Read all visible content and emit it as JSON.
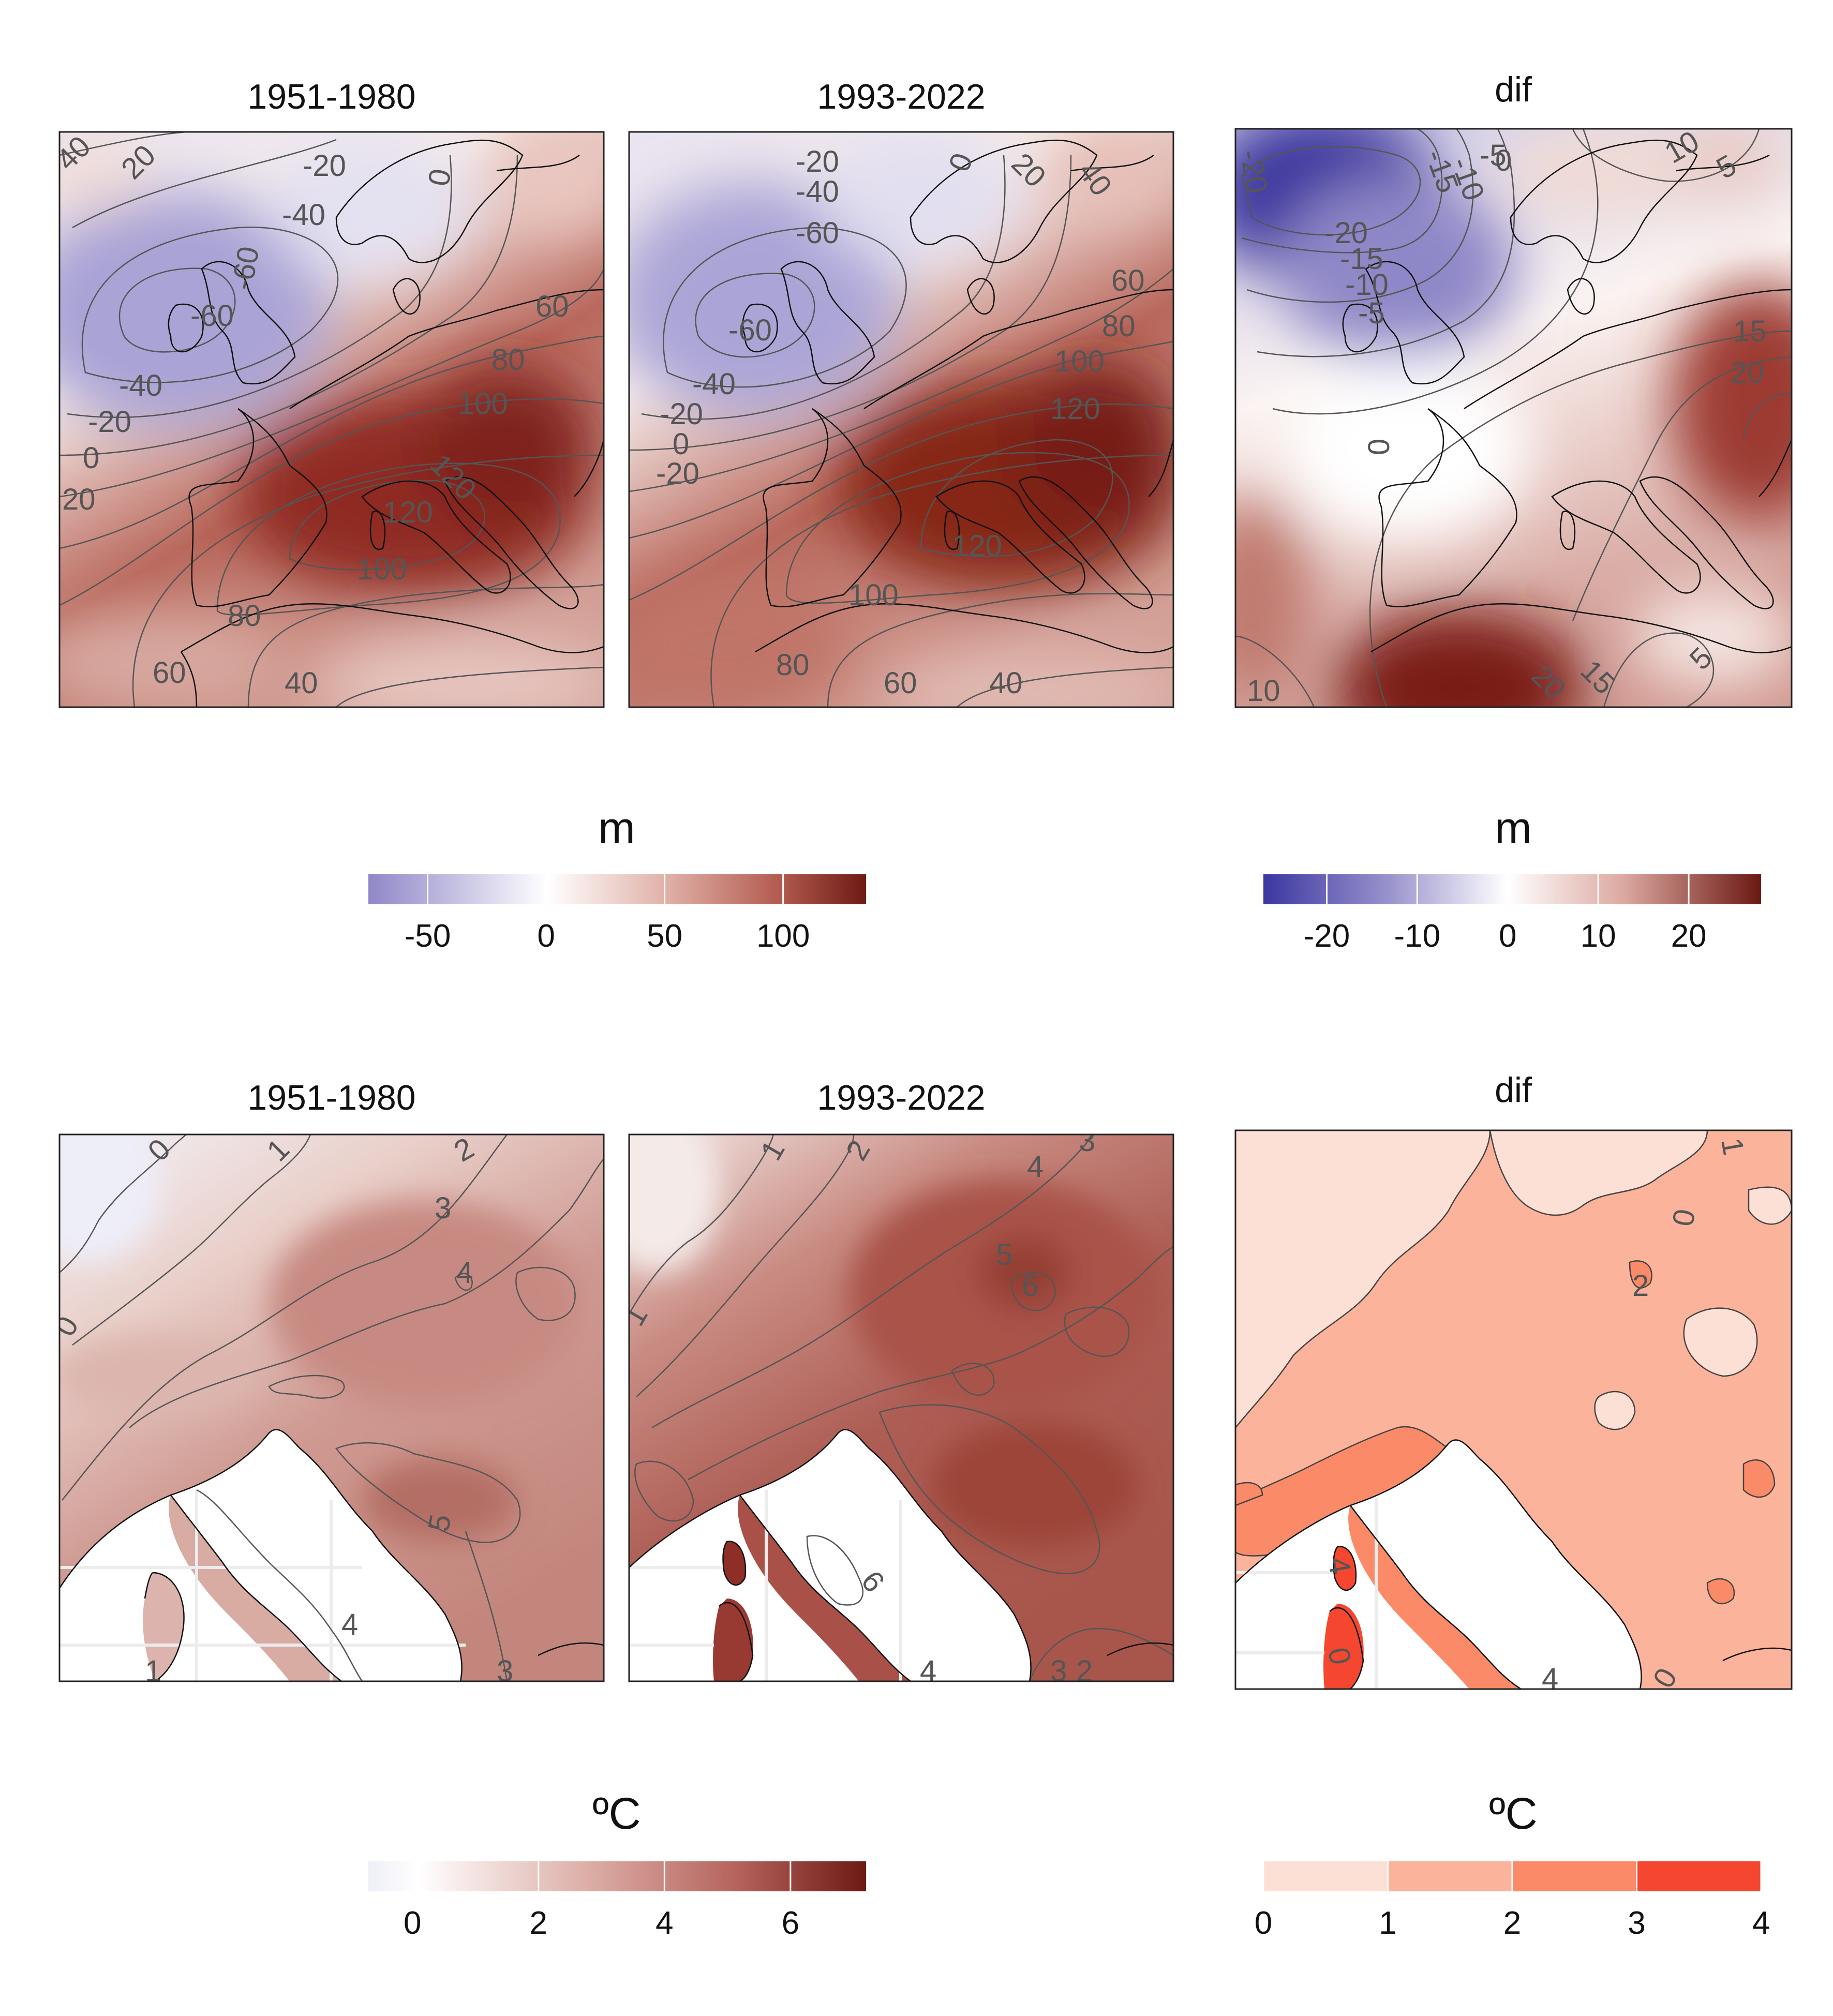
{
  "figure": {
    "rows": [
      {
        "panels": [
          {
            "id": "z500-1951",
            "title": "1951-1980",
            "contour_labels": [
              "40",
              "20",
              "-20",
              "-40",
              "-60",
              "-60",
              "-40",
              "-20",
              "0",
              "20",
              "0",
              "60",
              "80",
              "100",
              "120",
              "120",
              "100",
              "80",
              "60",
              "40"
            ]
          },
          {
            "id": "z500-1993",
            "title": "1993-2022",
            "contour_labels": [
              "-20",
              "-40",
              "-60",
              "-60",
              "-40",
              "-20",
              "0",
              "-20",
              "0",
              "20",
              "40",
              "60",
              "80",
              "100",
              "120",
              "120",
              "100",
              "80",
              "60",
              "40"
            ]
          },
          {
            "id": "z500-dif",
            "title": "dif",
            "contour_labels": [
              "-20",
              "-15",
              "-10",
              "-5",
              "0",
              "-20",
              "-15",
              "-10",
              "-5",
              "10",
              "5",
              "15",
              "20",
              "0",
              "20",
              "15",
              "5",
              "10"
            ]
          }
        ],
        "colorbars": [
          {
            "id": "cb-z500-abs",
            "label": "m",
            "ticks": [
              "-50",
              "0",
              "50",
              "100"
            ],
            "tick_values": [
              -50,
              0,
              50,
              100
            ],
            "range": [
              -75,
              135
            ],
            "colors": [
              "#8f87c8",
              "#ffffff",
              "#e2b6ad",
              "#b96558",
              "#6e1b14"
            ]
          },
          {
            "id": "cb-z500-dif",
            "label": "m",
            "ticks": [
              "-20",
              "-10",
              "0",
              "10",
              "20"
            ],
            "tick_values": [
              -20,
              -10,
              0,
              10,
              20
            ],
            "range": [
              -27,
              28
            ],
            "colors": [
              "#3b37a0",
              "#9892cc",
              "#ffffff",
              "#ddaaa2",
              "#6b1812"
            ]
          }
        ]
      },
      {
        "panels": [
          {
            "id": "t-1951",
            "title": "1951-1980",
            "contour_labels": [
              "0",
              "1",
              "2",
              "3",
              "4",
              "0",
              "5",
              "4",
              "1",
              "3"
            ]
          },
          {
            "id": "t-1993",
            "title": "1993-2022",
            "contour_labels": [
              "1",
              "2",
              "3",
              "4",
              "5",
              "6",
              "1",
              "6",
              "4",
              "3",
              "2"
            ]
          },
          {
            "id": "t-dif",
            "title": "dif",
            "contour_labels": [
              "1",
              "0",
              "2",
              "4",
              "0",
              "4",
              "0"
            ]
          }
        ],
        "colorbars": [
          {
            "id": "cb-t-abs",
            "label": "ºC",
            "ticks": [
              "0",
              "2",
              "4",
              "6"
            ],
            "tick_values": [
              0,
              2,
              4,
              6
            ],
            "range": [
              -0.7,
              7.2
            ],
            "colors": [
              "#eeeef8",
              "#ffffff",
              "#dbaca4",
              "#b4605a",
              "#6e1a14"
            ]
          },
          {
            "id": "cb-t-dif",
            "label": "ºC",
            "ticks": [
              "0",
              "1",
              "2",
              "3",
              "4"
            ],
            "tick_values": [
              0,
              1,
              2,
              3,
              4
            ],
            "range": [
              0,
              4
            ],
            "colors": [
              "#fde0d5",
              "#fcb39b",
              "#fb8a68",
              "#f5462f"
            ]
          }
        ]
      }
    ]
  }
}
